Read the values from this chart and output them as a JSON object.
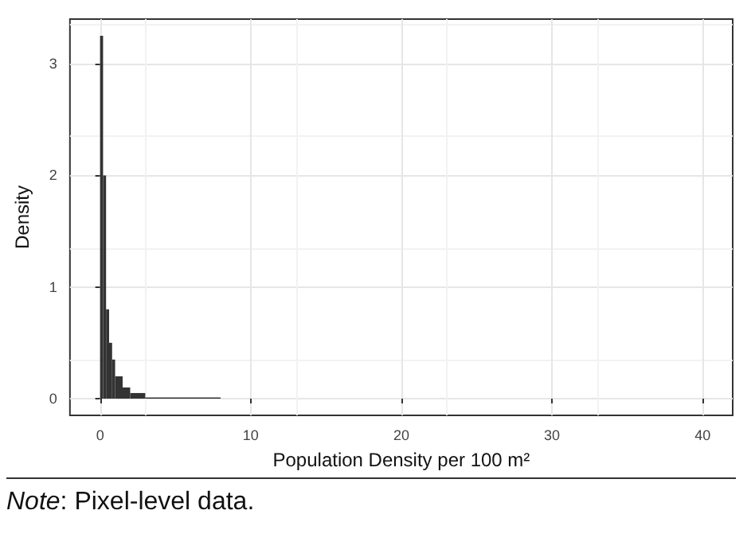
{
  "chart_data": {
    "type": "histogram",
    "xlabel": "Population Density per 100 m²",
    "ylabel": "Density",
    "bins": [
      0,
      0.2,
      0.4,
      0.6,
      0.8,
      1,
      1.5,
      2,
      3,
      8
    ],
    "values": [
      3.25,
      2.0,
      0.8,
      0.5,
      0.35,
      0.2,
      0.1,
      0.05,
      0.01
    ],
    "color": "#333333",
    "xlim": [
      -2,
      42
    ],
    "ylim": [
      -0.15,
      3.4
    ],
    "xticks": [
      0,
      10,
      20,
      30,
      40
    ],
    "yticks": [
      0,
      1,
      2,
      3
    ],
    "grid": true,
    "annotations": [
      "Note: Pixel-level data."
    ]
  }
}
